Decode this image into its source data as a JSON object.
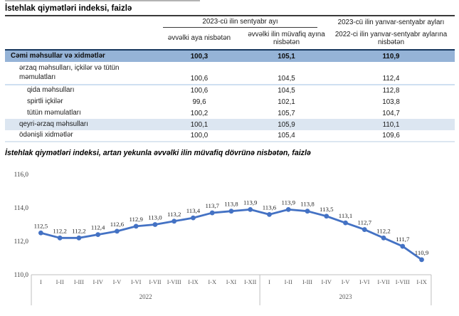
{
  "page": {
    "title": "İstehlak qiymətləri indeksi, faizlə"
  },
  "table": {
    "group_header_month": "2023-cü ilin sentyabr ayı",
    "group_header_period": "2023-cü ilin yanvar-sentyabr ayları",
    "col_prev_month": "əvvəlki aya nisbətən",
    "col_prev_year_month": "əvvəlki ilin müvafiq ayına nisbətən",
    "col_prev_year_period": "2022-ci ilin yanvar-sentyabr aylarına nisbətən",
    "rows": [
      {
        "label": "Cəmi məhsullar və xidmətlər",
        "v1": "100,3",
        "v2": "105,1",
        "v3": "110,9",
        "classes": "total"
      },
      {
        "label": "ərzaq məhsulları, içkilər və tütün məmulatları",
        "v1": "100,6",
        "v2": "104,5",
        "v3": "112,4",
        "classes": "group tall sep-after"
      },
      {
        "label": "qida məhsulları",
        "v1": "100,6",
        "v2": "104,5",
        "v3": "112,8",
        "classes": "sub"
      },
      {
        "label": "spirtli içkilər",
        "v1": "99,6",
        "v2": "102,1",
        "v3": "103,8",
        "classes": "sub"
      },
      {
        "label": "tütün məmulatları",
        "v1": "100,2",
        "v2": "105,7",
        "v3": "104,7",
        "classes": "sub"
      },
      {
        "label": "qeyri-ərzaq məhsulları",
        "v1": "100,1",
        "v2": "105,9",
        "v3": "110,1",
        "classes": "group shaded"
      },
      {
        "label": "ödənişli xidmətlər",
        "v1": "100,0",
        "v2": "105,4",
        "v3": "109,6",
        "classes": "group last"
      }
    ]
  },
  "chart": {
    "title": "İstehlak qiymətləri indeksi, artan yekunla əvvəlki ilin müvafiq dövrünə nisbətən, faizlə"
  },
  "chart_data": {
    "type": "line",
    "title": "İstehlak qiymətləri indeksi, artan yekunla əvvəlki ilin müvafiq dövrünə nisbətən, faizlə",
    "x": [
      "I",
      "I-II",
      "I-III",
      "I-IV",
      "I-V",
      "I-VI",
      "I-VII",
      "I-VIII",
      "I-IX",
      "I-X",
      "I-XI",
      "I-XII",
      "I",
      "I-II",
      "I-III",
      "I-IV",
      "I-V",
      "I-VI",
      "I-VII",
      "I-VIII",
      "I-IX"
    ],
    "values": [
      112.5,
      112.2,
      112.2,
      112.4,
      112.6,
      112.9,
      113.0,
      113.2,
      113.4,
      113.7,
      113.8,
      113.9,
      113.6,
      113.9,
      113.8,
      113.5,
      113.1,
      112.7,
      112.2,
      111.7,
      110.9
    ],
    "point_labels": [
      "112,5",
      "112,2",
      "112,2",
      "112,4",
      "112,6",
      "112,9",
      "113,0",
      "113,2",
      "113,4",
      "113,7",
      "113,8",
      "113,9",
      "113,6",
      "113,9",
      "113,8",
      "113,5",
      "113,1",
      "112,7",
      "112,2",
      "111,7",
      "110,9"
    ],
    "year_groups": [
      {
        "label": "2022",
        "count": 12
      },
      {
        "label": "2023",
        "count": 9
      }
    ],
    "y_ticks": [
      {
        "label": "110,0",
        "value": 110
      },
      {
        "label": "112,0",
        "value": 112
      },
      {
        "label": "114,0",
        "value": 114
      },
      {
        "label": "116,0",
        "value": 116
      }
    ],
    "ylim": [
      110,
      116.5
    ],
    "grid": false,
    "legend": false,
    "line_color": "#4472C4",
    "axis_color": "#BFBFBF",
    "label_color": "#3b3b3b",
    "tick_color": "#595959"
  },
  "colors": {
    "total_row_bg": "#95B3D7",
    "total_row_border": "#17375E",
    "shaded_row_bg": "#DCE6F1",
    "separator": "#CFE0F1"
  }
}
